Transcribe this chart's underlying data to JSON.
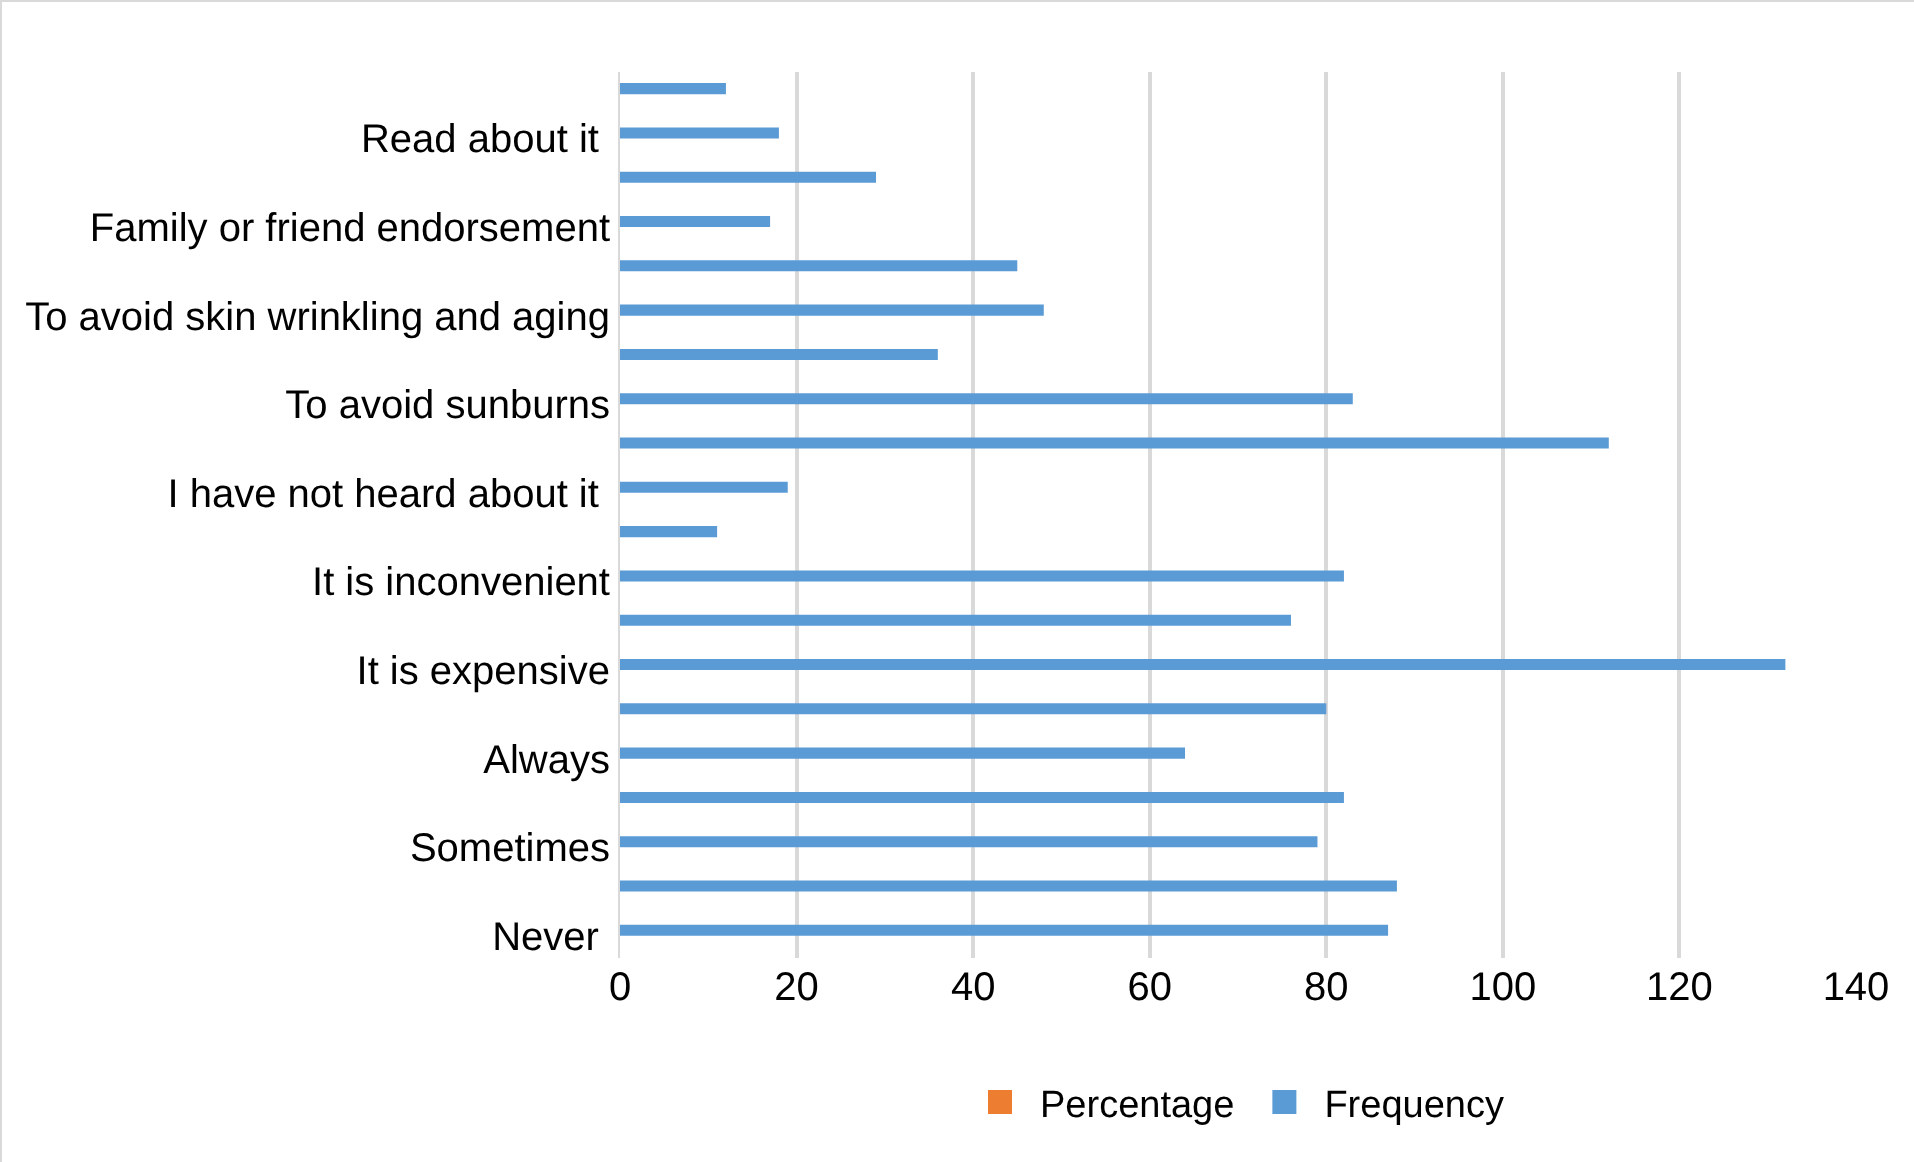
{
  "chart_data": {
    "type": "bar",
    "orientation": "horizontal",
    "categories": [
      null,
      "Read about it ",
      null,
      "Family or friend endorsement",
      null,
      "To avoid skin wrinkling and aging",
      null,
      "To avoid sunburns",
      null,
      "I have not heard about it ",
      null,
      "It is inconvenient",
      null,
      "It is expensive",
      null,
      "Always",
      null,
      "Sometimes",
      null,
      "Never "
    ],
    "series": [
      {
        "name": "Percentage",
        "color": "#ed7d31",
        "values": [
          null,
          null,
          null,
          null,
          null,
          null,
          null,
          null,
          null,
          null,
          null,
          null,
          null,
          null,
          null,
          null,
          null,
          null,
          null,
          null
        ]
      },
      {
        "name": "Frequency",
        "color": "#5b9bd5",
        "values": [
          12,
          18,
          29,
          17,
          45,
          48,
          36,
          83,
          112,
          19,
          11,
          82,
          76,
          132,
          80,
          64,
          82,
          79,
          88,
          87
        ]
      }
    ],
    "xlim": [
      0,
      140
    ],
    "xticks": [
      0,
      20,
      40,
      60,
      80,
      100,
      120,
      140
    ],
    "grid": "x",
    "legend": "bottom"
  }
}
